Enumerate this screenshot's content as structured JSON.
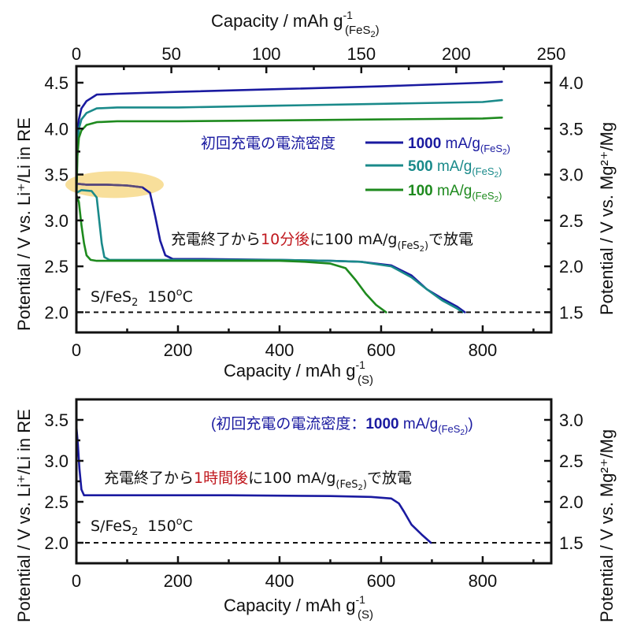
{
  "chart_data": [
    {
      "id": "top",
      "type": "line",
      "xlabel": "Capacity / mAh g",
      "xlabel_sup": "-1",
      "xlabel_sub": "(S)",
      "x2label": "Capacity / mAh g",
      "x2label_sup": "-1",
      "x2label_sub": "(FeS",
      "x2label_sub2": "2",
      "x2label_sub3": ")",
      "ylabel": "Potential / V vs. Li⁺/Li in RE",
      "y2label": "Potential / V vs. Mg²⁺/Mg",
      "xlim": [
        0,
        935
      ],
      "x2lim": [
        0,
        250
      ],
      "ylim": [
        1.78,
        4.68
      ],
      "y2_offset": -0.5,
      "xticks": [
        0,
        200,
        400,
        600,
        800
      ],
      "xticks_minor": [
        100,
        300,
        500,
        700,
        900
      ],
      "x2ticks": [
        0,
        50,
        100,
        150,
        200,
        250
      ],
      "x2ticks_minor": [
        25,
        75,
        125,
        175,
        225
      ],
      "yticks": [
        "2.0",
        "2.5",
        "3.0",
        "3.5",
        "4.0",
        "4.5"
      ],
      "y2ticks": [
        "1.5",
        "2.0",
        "2.5",
        "3.0",
        "3.5",
        "4.0"
      ],
      "cutoff_line": 2.0,
      "highlight": {
        "x": [
          0,
          200
        ],
        "y_center": 3.39,
        "color": "#f7d98a"
      },
      "series": [
        {
          "name": "1000 mA/g(FeS2)",
          "color": "#1a1aa0",
          "segments": [
            {
              "kind": "charge",
              "x": [
                0,
                2,
                5,
                10,
                20,
                40,
                80,
                200,
                400,
                600,
                800,
                838
              ],
              "y": [
                3.3,
                3.9,
                4.1,
                4.22,
                4.3,
                4.37,
                4.38,
                4.4,
                4.43,
                4.46,
                4.5,
                4.51
              ]
            },
            {
              "kind": "discharge",
              "x": [
                0,
                20,
                60,
                100,
                130,
                145,
                155,
                165,
                175,
                190,
                250,
                400,
                500,
                560,
                620,
                660,
                690,
                720,
                750,
                765
              ],
              "y": [
                3.4,
                3.39,
                3.39,
                3.38,
                3.36,
                3.3,
                3.05,
                2.78,
                2.62,
                2.58,
                2.58,
                2.57,
                2.56,
                2.55,
                2.51,
                2.4,
                2.25,
                2.15,
                2.06,
                2.0
              ]
            }
          ]
        },
        {
          "name": "500 mA/g(FeS2)",
          "color": "#1a8a8a",
          "segments": [
            {
              "kind": "charge",
              "x": [
                0,
                2,
                5,
                10,
                20,
                40,
                80,
                200,
                400,
                600,
                800,
                838
              ],
              "y": [
                3.3,
                3.8,
                4.0,
                4.1,
                4.17,
                4.22,
                4.23,
                4.23,
                4.25,
                4.27,
                4.29,
                4.31
              ]
            },
            {
              "kind": "discharge",
              "x": [
                0,
                10,
                30,
                40,
                45,
                50,
                55,
                65,
                100,
                250,
                400,
                500,
                560,
                620,
                660,
                690,
                720,
                750,
                760
              ],
              "y": [
                3.3,
                3.33,
                3.32,
                3.25,
                3.0,
                2.75,
                2.6,
                2.57,
                2.57,
                2.57,
                2.57,
                2.56,
                2.55,
                2.5,
                2.38,
                2.25,
                2.13,
                2.04,
                2.0
              ]
            }
          ]
        },
        {
          "name": "100 mA/g(FeS2)",
          "color": "#1e8a1e",
          "segments": [
            {
              "kind": "charge",
              "x": [
                0,
                2,
                5,
                10,
                20,
                40,
                80,
                200,
                400,
                600,
                800,
                838
              ],
              "y": [
                3.2,
                3.7,
                3.9,
                3.98,
                4.04,
                4.07,
                4.08,
                4.08,
                4.09,
                4.1,
                4.11,
                4.12
              ]
            },
            {
              "kind": "discharge",
              "x": [
                0,
                5,
                10,
                15,
                20,
                28,
                40,
                100,
                250,
                400,
                450,
                500,
                530,
                550,
                570,
                590,
                610
              ],
              "y": [
                3.28,
                3.2,
                2.95,
                2.75,
                2.62,
                2.57,
                2.56,
                2.56,
                2.56,
                2.56,
                2.55,
                2.53,
                2.48,
                2.35,
                2.2,
                2.08,
                2.0
              ]
            }
          ]
        }
      ],
      "legend": {
        "title": "初回充電の電流密度",
        "title_color": "#1a1aa0",
        "placement": "top-right",
        "entries": [
          {
            "value": "1000",
            "unit": " mA/g",
            "sub": "(FeS",
            "sub2": "2",
            "sub3": ")",
            "color": "#1a1aa0"
          },
          {
            "value": "500",
            "unit": " mA/g",
            "sub": "(FeS",
            "sub2": "2",
            "sub3": ")",
            "color": "#1a8a8a"
          },
          {
            "value": "100",
            "unit": " mA/g",
            "sub": "(FeS",
            "sub2": "2",
            "sub3": ")",
            "color": "#1e8a1e"
          }
        ]
      },
      "annotation": {
        "prefix": "充電終了から",
        "highlight": "10分後",
        "highlight_color": "#c0181e",
        "middle": "に100 mA/g",
        "sub": "(FeS",
        "sub2": "2",
        "sub3": ")",
        "suffix": "で放電"
      },
      "sample_label": {
        "main": "S/FeS",
        "sub": "2",
        "temp": "150",
        "deg": "o",
        "unit": "C"
      }
    },
    {
      "id": "bottom",
      "type": "line",
      "xlabel": "Capacity / mAh g",
      "xlabel_sup": "-1",
      "xlabel_sub": "(S)",
      "ylabel": "Potential / V vs. Li⁺/Li in RE",
      "y2label": "Potential / V vs. Mg²⁺/Mg",
      "xlim": [
        0,
        935
      ],
      "ylim": [
        1.75,
        3.75
      ],
      "y2_offset": -0.5,
      "xticks": [
        0,
        200,
        400,
        600,
        800
      ],
      "xticks_minor": [
        100,
        300,
        500,
        700,
        900
      ],
      "yticks": [
        "2.0",
        "2.5",
        "3.0",
        "3.5"
      ],
      "y2ticks": [
        "1.5",
        "2.0",
        "2.5",
        "3.0"
      ],
      "cutoff_line": 2.0,
      "series": [
        {
          "name": "1000 mA/g(FeS2), 1 h rest",
          "color": "#1a1aa0",
          "segments": [
            {
              "kind": "discharge",
              "x": [
                0,
                3,
                6,
                10,
                15,
                25,
                100,
                300,
                500,
                580,
                620,
                635,
                645,
                660,
                680,
                698
              ],
              "y": [
                3.42,
                3.2,
                2.9,
                2.65,
                2.58,
                2.58,
                2.58,
                2.58,
                2.57,
                2.56,
                2.54,
                2.48,
                2.38,
                2.22,
                2.1,
                2.0
              ]
            }
          ]
        }
      ],
      "legend": {
        "open": "(",
        "title": "初回充電の電流密度：",
        "value": "1000",
        "unit": " mA/g",
        "sub": "(FeS",
        "sub2": "2",
        "sub3": ")",
        "close": ")",
        "color": "#1a1aa0"
      },
      "annotation": {
        "prefix": "充電終了から",
        "highlight": "1時間後",
        "highlight_color": "#c0181e",
        "middle": "に100 mA/g",
        "sub": "(FeS",
        "sub2": "2",
        "sub3": ")",
        "suffix": "で放電"
      },
      "sample_label": {
        "main": "S/FeS",
        "sub": "2",
        "temp": "150",
        "deg": "o",
        "unit": "C"
      }
    }
  ]
}
